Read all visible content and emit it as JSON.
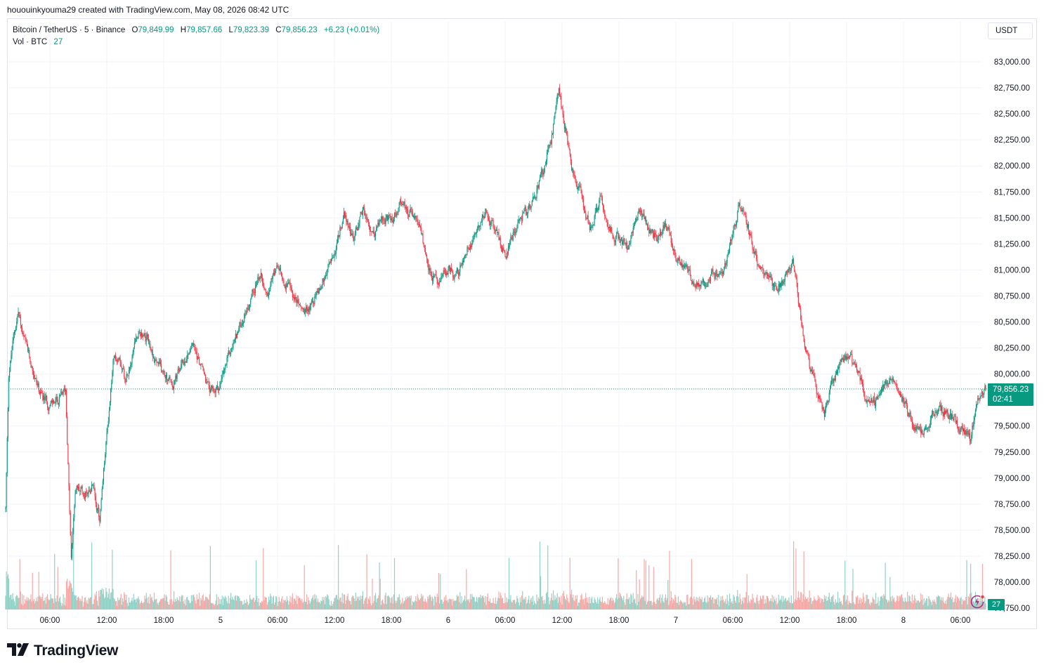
{
  "credit": "hououinkyouma29 created with TradingView.com, May 08, 2026 08:42 UTC",
  "legend": {
    "symbol": "Bitcoin / TetherUS · 5 · Binance",
    "o_label": "O",
    "o_value": "79,849.99",
    "h_label": "H",
    "h_value": "79,857.66",
    "l_label": "L",
    "l_value": "79,823.39",
    "c_label": "C",
    "c_value": "79,856.23",
    "change": "+6.23 (+0.01%)",
    "vol_label": "Vol · BTC",
    "vol_value": "27"
  },
  "currency_button": "USDT",
  "price_tag": {
    "price": "79,856.23",
    "countdown": "02:41"
  },
  "volume_tag": "27",
  "brand": "TradingView",
  "colors": {
    "up": "#089981",
    "down": "#f23645",
    "up_vol": "#92d2c6",
    "down_vol": "#f7a9a7",
    "grid": "#f0f3fa",
    "last_line": "#089981"
  },
  "icons": {
    "replay": "lightning-replay-icon",
    "logo": "tradingview-logo-icon"
  },
  "chart_data": {
    "type": "candlestick",
    "title": "Bitcoin / TetherUS · 5 · Binance",
    "interval_minutes": 5,
    "ylim": [
      77750,
      83150
    ],
    "y_ticks": [
      "83,000.00",
      "82,750.00",
      "82,500.00",
      "82,250.00",
      "82,000.00",
      "81,750.00",
      "81,500.00",
      "81,250.00",
      "81,000.00",
      "80,750.00",
      "80,500.00",
      "80,250.00",
      "80,000.00",
      "79,500.00",
      "79,250.00",
      "79,000.00",
      "78,750.00",
      "78,500.00",
      "78,250.00",
      "78,000.00",
      "77,750.00"
    ],
    "x_ticks": [
      "06:00",
      "12:00",
      "18:00",
      "5",
      "06:00",
      "12:00",
      "18:00",
      "6",
      "06:00",
      "12:00",
      "18:00",
      "7",
      "06:00",
      "12:00",
      "18:00",
      "8",
      "06:00"
    ],
    "last_price": 79856.23,
    "price_path": [
      [
        "May 4 01:20",
        78700
      ],
      [
        "May 4 01:40",
        80000
      ],
      [
        "May 4 02:10",
        80350
      ],
      [
        "May 4 02:40",
        80600
      ],
      [
        "May 4 03:10",
        80350
      ],
      [
        "May 4 04:00",
        80100
      ],
      [
        "May 4 05:00",
        79800
      ],
      [
        "May 4 06:00",
        79700
      ],
      [
        "May 4 07:00",
        79750
      ],
      [
        "May 4 07:40",
        79850
      ],
      [
        "May 4 08:00",
        78900
      ],
      [
        "May 4 08:15",
        78200
      ],
      [
        "May 4 08:40",
        78900
      ],
      [
        "May 4 09:40",
        78850
      ],
      [
        "May 4 10:30",
        78950
      ],
      [
        "May 4 11:15",
        78600
      ],
      [
        "May 4 12:00",
        79400
      ],
      [
        "May 4 12:40",
        80100
      ],
      [
        "May 4 13:20",
        80200
      ],
      [
        "May 4 14:00",
        79950
      ],
      [
        "May 4 15:00",
        80350
      ],
      [
        "May 4 16:00",
        80400
      ],
      [
        "May 4 17:00",
        80150
      ],
      [
        "May 4 18:00",
        80000
      ],
      [
        "May 4 19:00",
        79900
      ],
      [
        "May 4 20:00",
        80100
      ],
      [
        "May 4 21:00",
        80300
      ],
      [
        "May 4 22:00",
        80050
      ],
      [
        "May 4 23:00",
        79800
      ],
      [
        "May 5 00:00",
        79900
      ],
      [
        "May 5 01:00",
        80200
      ],
      [
        "May 5 02:00",
        80450
      ],
      [
        "May 5 03:00",
        80700
      ],
      [
        "May 5 04:00",
        80950
      ],
      [
        "May 5 05:00",
        80850
      ],
      [
        "May 5 06:00",
        81000
      ],
      [
        "May 5 07:00",
        80850
      ],
      [
        "May 5 08:00",
        80700
      ],
      [
        "May 5 09:00",
        80580
      ],
      [
        "May 5 10:00",
        80750
      ],
      [
        "May 5 11:00",
        80950
      ],
      [
        "May 5 12:00",
        81150
      ],
      [
        "May 5 13:00",
        81550
      ],
      [
        "May 5 14:00",
        81300
      ],
      [
        "May 5 15:00",
        81600
      ],
      [
        "May 5 16:00",
        81300
      ],
      [
        "May 5 17:00",
        81500
      ],
      [
        "May 5 18:00",
        81450
      ],
      [
        "May 5 19:00",
        81650
      ],
      [
        "May 5 20:00",
        81550
      ],
      [
        "May 5 21:00",
        81400
      ],
      [
        "May 5 22:00",
        81000
      ],
      [
        "May 5 23:00",
        80850
      ],
      [
        "May 6 00:00",
        81000
      ],
      [
        "May 6 01:00",
        80950
      ],
      [
        "May 6 02:00",
        81200
      ],
      [
        "May 6 03:00",
        81400
      ],
      [
        "May 6 04:00",
        81600
      ],
      [
        "May 6 05:00",
        81350
      ],
      [
        "May 6 06:00",
        81150
      ],
      [
        "May 6 07:00",
        81400
      ],
      [
        "May 6 08:00",
        81550
      ],
      [
        "May 6 09:00",
        81650
      ],
      [
        "May 6 10:00",
        81950
      ],
      [
        "May 6 11:00",
        82300
      ],
      [
        "May 6 11:40",
        82750
      ],
      [
        "May 6 12:10",
        82450
      ],
      [
        "May 6 13:00",
        82000
      ],
      [
        "May 6 14:00",
        81700
      ],
      [
        "May 6 15:00",
        81400
      ],
      [
        "May 6 16:00",
        81700
      ],
      [
        "May 6 17:00",
        81400
      ],
      [
        "May 6 18:00",
        81300
      ],
      [
        "May 6 19:00",
        81200
      ],
      [
        "May 6 20:00",
        81550
      ],
      [
        "May 6 21:00",
        81450
      ],
      [
        "May 6 22:00",
        81300
      ],
      [
        "May 6 23:00",
        81450
      ],
      [
        "May 7 00:00",
        81150
      ],
      [
        "May 7 01:00",
        81000
      ],
      [
        "May 7 02:00",
        80900
      ],
      [
        "May 7 03:00",
        80850
      ],
      [
        "May 7 04:00",
        80950
      ],
      [
        "May 7 05:00",
        81000
      ],
      [
        "May 7 06:00",
        81350
      ],
      [
        "May 7 06:40",
        81650
      ],
      [
        "May 7 07:30",
        81450
      ],
      [
        "May 7 08:30",
        81100
      ],
      [
        "May 7 09:30",
        80950
      ],
      [
        "May 7 10:30",
        80800
      ],
      [
        "May 7 11:30",
        80950
      ],
      [
        "May 7 12:20",
        81100
      ],
      [
        "May 7 13:00",
        80650
      ],
      [
        "May 7 13:40",
        80250
      ],
      [
        "May 7 14:20",
        80000
      ],
      [
        "May 7 15:00",
        79800
      ],
      [
        "May 7 15:40",
        79600
      ],
      [
        "May 7 16:20",
        79850
      ],
      [
        "May 7 17:00",
        80050
      ],
      [
        "May 7 18:00",
        80150
      ],
      [
        "May 7 19:00",
        80050
      ],
      [
        "May 7 20:00",
        79800
      ],
      [
        "May 7 21:00",
        79750
      ],
      [
        "May 7 22:00",
        79900
      ],
      [
        "May 7 23:00",
        80000
      ],
      [
        "May 8 00:00",
        79750
      ],
      [
        "May 8 01:00",
        79500
      ],
      [
        "May 8 02:00",
        79400
      ],
      [
        "May 8 03:00",
        79600
      ],
      [
        "May 8 04:00",
        79650
      ],
      [
        "May 8 05:00",
        79600
      ],
      [
        "May 8 06:00",
        79500
      ],
      [
        "May 8 07:00",
        79350
      ],
      [
        "May 8 07:40",
        79700
      ],
      [
        "May 8 08:40",
        79856
      ]
    ]
  }
}
